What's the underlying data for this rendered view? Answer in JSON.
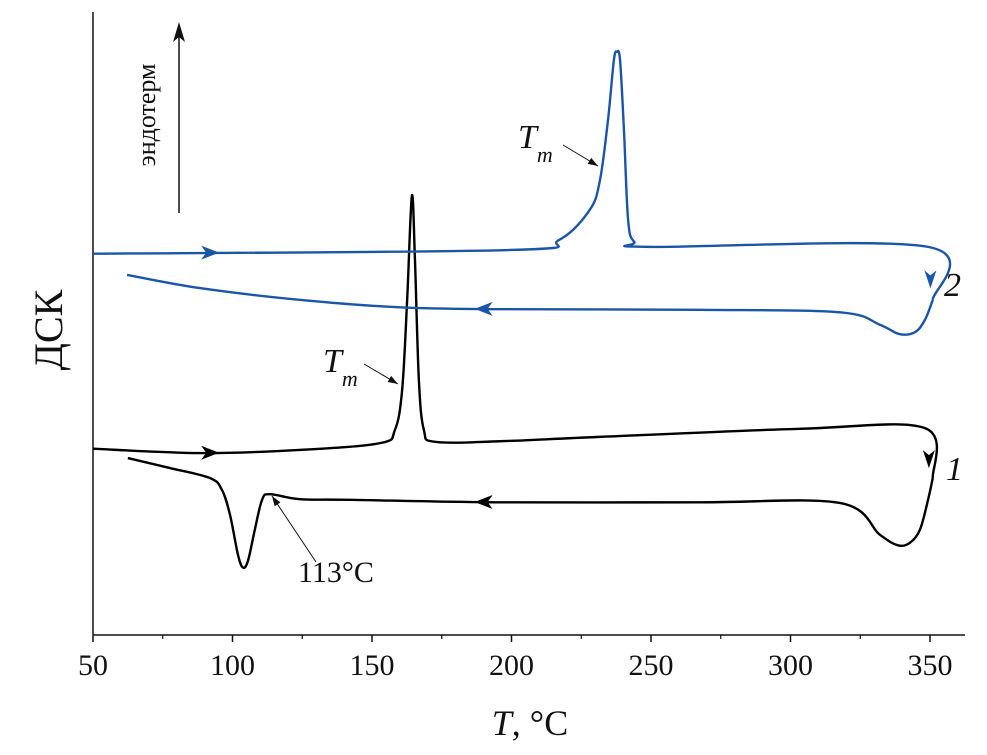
{
  "chart_data": {
    "type": "line",
    "title": "",
    "xlabel_var": "T",
    "xlabel_unit": ", °C",
    "ylabel": "ДСК",
    "direction_label": "эндотерм",
    "xlim": [
      50,
      362
    ],
    "ylim": [
      0,
      100
    ],
    "xticks": [
      50,
      100,
      150,
      200,
      250,
      300,
      350
    ],
    "grid": false,
    "series": [
      {
        "name": "1",
        "color": "#000000",
        "heating": [
          [
            50,
            29.9
          ],
          [
            88.4,
            29.2
          ],
          [
            124,
            29.7
          ],
          [
            152.9,
            30.8
          ],
          [
            158.2,
            32.9
          ],
          [
            160.8,
            39.3
          ],
          [
            162.6,
            53.8
          ],
          [
            164.3,
            70.5
          ],
          [
            165.4,
            60.2
          ],
          [
            166.8,
            40.9
          ],
          [
            168.6,
            32.9
          ],
          [
            172.6,
            31.0
          ],
          [
            195.9,
            31.1
          ],
          [
            231.7,
            31.8
          ],
          [
            303.4,
            33.1
          ],
          [
            348.2,
            33.2
          ],
          [
            351,
            25.2
          ]
        ],
        "cooling": [
          [
            351,
            25.2
          ],
          [
            349.3,
            21.7
          ],
          [
            346.4,
            16.9
          ],
          [
            342.8,
            14.8
          ],
          [
            338.5,
            14.4
          ],
          [
            332,
            16.1
          ],
          [
            317.7,
            21.2
          ],
          [
            267.6,
            21.3
          ],
          [
            195.9,
            21.3
          ],
          [
            142.1,
            21.7
          ],
          [
            124.2,
            21.8
          ],
          [
            113.4,
            22.6
          ],
          [
            110.6,
            21.7
          ],
          [
            108,
            16.9
          ],
          [
            105.6,
            12.0
          ],
          [
            103.8,
            10.8
          ],
          [
            102,
            12.8
          ],
          [
            99.1,
            19.3
          ],
          [
            96.2,
            23.3
          ],
          [
            91.9,
            25.2
          ],
          [
            77.6,
            26.8
          ],
          [
            62.5,
            28.4
          ]
        ]
      },
      {
        "name": "2",
        "color": "#1a56a8",
        "heating": [
          [
            50,
            61.2
          ],
          [
            199.5,
            61.8
          ],
          [
            217,
            63.4
          ],
          [
            228,
            68.2
          ],
          [
            231.7,
            73.0
          ],
          [
            234.6,
            82.7
          ],
          [
            236.7,
            92.3
          ],
          [
            237.8,
            93.6
          ],
          [
            238.9,
            92.3
          ],
          [
            240.3,
            81.1
          ],
          [
            241.8,
            66.6
          ],
          [
            244,
            63.1
          ],
          [
            249.6,
            62.3
          ],
          [
            349.3,
            62.3
          ],
          [
            351,
            53.8
          ]
        ],
        "cooling": [
          [
            351,
            53.8
          ],
          [
            348.2,
            50.6
          ],
          [
            344.6,
            48.6
          ],
          [
            339,
            48.3
          ],
          [
            332,
            49.8
          ],
          [
            317.7,
            51.8
          ],
          [
            267.6,
            52.2
          ],
          [
            195.9,
            52.3
          ],
          [
            160,
            52.6
          ],
          [
            124,
            53.8
          ],
          [
            88,
            55.7
          ],
          [
            62.2,
            57.8
          ]
        ]
      }
    ],
    "annotations": {
      "tm_var": "T",
      "tm_sub": "m",
      "crystallization_label": "113°C"
    }
  }
}
